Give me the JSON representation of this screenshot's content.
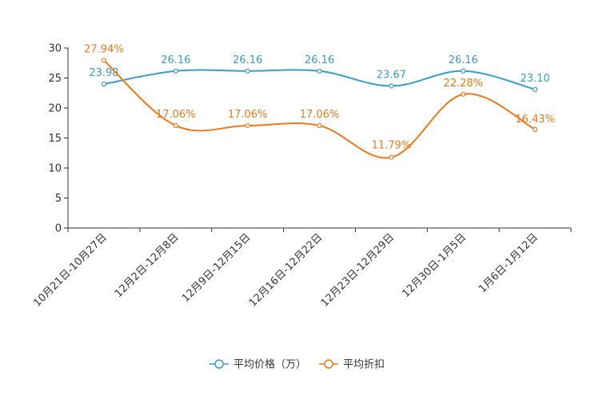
{
  "chart_data": {
    "type": "line",
    "title": "",
    "xlabel": "",
    "ylabel": "",
    "ylim": [
      0,
      30
    ],
    "yticks": [
      0,
      5,
      10,
      15,
      20,
      25,
      30
    ],
    "categories": [
      "10月21日-10月27日",
      "12月2日-12月8日",
      "12月9日-12月15日",
      "12月16日-12月22日",
      "12月23日-12月29日",
      "12月30日-1月5日",
      "1月6日-1月12日"
    ],
    "series": [
      {
        "name": "平均价格（万）",
        "color": "#3a9bcf",
        "values": [
          23.98,
          26.16,
          26.16,
          26.16,
          23.67,
          26.16,
          23.1
        ],
        "labels": [
          "23.98",
          "26.16",
          "26.16",
          "26.16",
          "23.67",
          "26.16",
          "23.10"
        ]
      },
      {
        "name": "平均折扣",
        "color": "#f07818",
        "values": [
          27.94,
          17.06,
          17.06,
          17.06,
          11.79,
          22.28,
          16.43
        ],
        "labels": [
          "27.94%",
          "17.06%",
          "17.06%",
          "17.06%",
          "11.79%",
          "22.28%",
          "16.43%"
        ]
      }
    ],
    "legend": "bottom-center",
    "grid": false
  }
}
